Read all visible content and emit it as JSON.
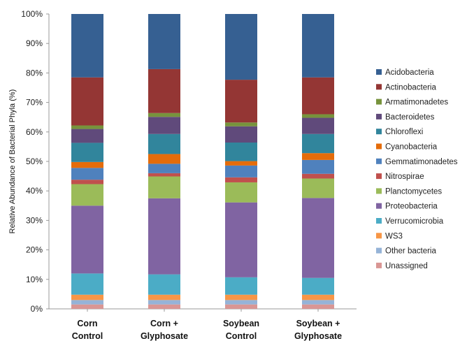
{
  "chart_data": {
    "type": "bar",
    "stacked": true,
    "ylabel": "Relative Abundance of Bacterial Phyla (%)",
    "ylim": [
      0,
      100
    ],
    "yticks": [
      "0%",
      "10%",
      "20%",
      "30%",
      "40%",
      "50%",
      "60%",
      "70%",
      "80%",
      "90%",
      "100%"
    ],
    "grid": false,
    "legend_position": "right",
    "categories": [
      [
        "Corn",
        "Control"
      ],
      [
        "Corn +",
        "Glyphosate"
      ],
      [
        "Soybean",
        "Control"
      ],
      [
        "Soybean +",
        "Glyphosate"
      ]
    ],
    "series": [
      {
        "name": "Unassigned",
        "color": "#d99694",
        "values": [
          1.5,
          1.5,
          1.5,
          1.5
        ]
      },
      {
        "name": "Other bacteria",
        "color": "#95b3d7",
        "values": [
          1.5,
          1.5,
          1.5,
          1.5
        ]
      },
      {
        "name": "WS3",
        "color": "#f79646",
        "values": [
          1.8,
          1.8,
          1.8,
          1.8
        ]
      },
      {
        "name": "Verrucomicrobia",
        "color": "#4bacc6",
        "values": [
          7.2,
          6.9,
          5.9,
          5.7
        ]
      },
      {
        "name": "Proteobacteria",
        "color": "#8064a2",
        "values": [
          23.0,
          25.8,
          25.4,
          27.1
        ]
      },
      {
        "name": "Planctomycetes",
        "color": "#9bbb59",
        "values": [
          7.3,
          7.4,
          6.8,
          6.6
        ]
      },
      {
        "name": "Nitrospirae",
        "color": "#c0504d",
        "values": [
          1.5,
          1.1,
          1.7,
          1.6
        ]
      },
      {
        "name": "Gemmatimonadetes",
        "color": "#4f81bd",
        "values": [
          4.0,
          3.2,
          4.0,
          4.7
        ]
      },
      {
        "name": "Cyanobacteria",
        "color": "#e46c0a",
        "values": [
          2.0,
          3.3,
          1.5,
          2.3
        ]
      },
      {
        "name": "Chloroflexi",
        "color": "#31859c",
        "values": [
          6.5,
          6.8,
          6.3,
          6.5
        ]
      },
      {
        "name": "Bacteroidetes",
        "color": "#604a7b",
        "values": [
          4.7,
          5.8,
          5.5,
          5.5
        ]
      },
      {
        "name": "Armatimonadetes",
        "color": "#77933c",
        "values": [
          1.2,
          1.3,
          1.3,
          1.2
        ]
      },
      {
        "name": "Actinobacteria",
        "color": "#943634",
        "values": [
          16.3,
          14.9,
          14.5,
          12.5
        ]
      },
      {
        "name": "Acidobacteria",
        "color": "#366092",
        "values": [
          21.5,
          18.7,
          22.3,
          21.5
        ]
      }
    ]
  }
}
